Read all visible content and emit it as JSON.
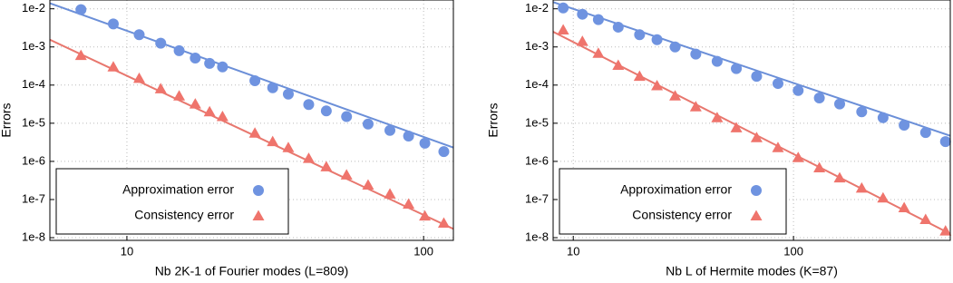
{
  "chart_data": [
    {
      "type": "scatter",
      "xlabel": "Nb 2K-1 of Fourier modes (L=809)",
      "ylabel": "Errors",
      "log_x": true,
      "log_y": true,
      "grid": true,
      "legend": "lower left",
      "xlim": [
        5.5,
        126
      ],
      "ylim": [
        8.5e-09,
        0.017
      ],
      "xticks": [
        10,
        100
      ],
      "yticks": [
        {
          "value": 1e-08,
          "label": "1e-8"
        },
        {
          "value": 1e-07,
          "label": "1e-7"
        },
        {
          "value": 1e-06,
          "label": "1e-6"
        },
        {
          "value": 1e-05,
          "label": "1e-5"
        },
        {
          "value": 0.0001,
          "label": "1e-4"
        },
        {
          "value": 0.001,
          "label": "1e-3"
        },
        {
          "value": 0.01,
          "label": "1e-2"
        }
      ],
      "series": [
        {
          "name": "Approximation error",
          "color": "#6f93e0",
          "marker": "circle",
          "x": [
            7,
            9,
            11,
            13,
            15,
            17,
            19,
            21,
            27,
            31,
            35,
            41,
            47,
            55,
            65,
            77,
            89,
            101,
            117
          ],
          "values": [
            0.0095,
            0.004,
            0.0021,
            0.00125,
            0.0008,
            0.00051,
            0.00037,
            0.0003,
            0.00013,
            8.5e-05,
            5.8e-05,
            3.1e-05,
            2.1e-05,
            1.5e-05,
            9.5e-06,
            6.5e-06,
            4.6e-06,
            3e-06,
            1.8e-06
          ]
        },
        {
          "name": "Consistency error",
          "color": "#ef746c",
          "marker": "triangle",
          "x": [
            7,
            9,
            11,
            13,
            15,
            17,
            19,
            21,
            27,
            31,
            35,
            41,
            47,
            55,
            65,
            77,
            89,
            101,
            117
          ],
          "values": [
            0.0006,
            0.0003,
            0.00015,
            8e-05,
            5.2e-05,
            3.2e-05,
            2e-05,
            1.5e-05,
            5.5e-06,
            3.3e-06,
            2.3e-06,
            1.2e-06,
            7.2e-07,
            4.4e-07,
            2.4e-07,
            1.4e-07,
            7.6e-08,
            3.7e-08,
            2.4e-08
          ]
        }
      ],
      "fits": [
        {
          "color": "#6b8fd8",
          "x": [
            5.5,
            126
          ],
          "values": [
            0.014,
            2.3e-06
          ]
        },
        {
          "color": "#e8776e",
          "x": [
            5.5,
            126
          ],
          "values": [
            0.00155,
            1.7e-08
          ]
        }
      ]
    },
    {
      "type": "scatter",
      "xlabel": "Nb L of Hermite modes (K=87)",
      "ylabel": "Errors",
      "log_x": true,
      "log_y": true,
      "grid": true,
      "legend": "lower left",
      "xlim": [
        8.1,
        515
      ],
      "ylim": [
        8.5e-09,
        0.017
      ],
      "xticks": [
        10,
        100
      ],
      "yticks": [
        {
          "value": 1e-08,
          "label": "1e-8"
        },
        {
          "value": 1e-07,
          "label": "1e-7"
        },
        {
          "value": 1e-06,
          "label": "1e-6"
        },
        {
          "value": 1e-05,
          "label": "1e-5"
        },
        {
          "value": 0.0001,
          "label": "1e-4"
        },
        {
          "value": 0.001,
          "label": "1e-3"
        },
        {
          "value": 0.01,
          "label": "1e-2"
        }
      ],
      "series": [
        {
          "name": "Approximation error",
          "color": "#6f93e0",
          "marker": "circle",
          "x": [
            9,
            11,
            13,
            16,
            20,
            24,
            29,
            36,
            45,
            55,
            68,
            85,
            105,
            131,
            162,
            204,
            255,
            318,
            398,
            490
          ],
          "values": [
            0.0105,
            0.0072,
            0.0052,
            0.0033,
            0.0021,
            0.00155,
            0.001,
            0.00065,
            0.00042,
            0.00027,
            0.00017,
            0.00011,
            7.2e-05,
            4.6e-05,
            3.2e-05,
            2e-05,
            1.4e-05,
            8.9e-06,
            5.7e-06,
            3.3e-06
          ]
        },
        {
          "name": "Consistency error",
          "color": "#ef746c",
          "marker": "triangle",
          "x": [
            9,
            11,
            13,
            16,
            20,
            24,
            29,
            36,
            45,
            55,
            68,
            85,
            105,
            131,
            162,
            204,
            255,
            318,
            398,
            490
          ],
          "values": [
            0.0028,
            0.0014,
            0.00068,
            0.00033,
            0.00017,
            9.6e-05,
            5.2e-05,
            2.7e-05,
            1.4e-05,
            7.6e-06,
            4.2e-06,
            2.3e-06,
            1.26e-06,
            6.8e-07,
            3.7e-07,
            2e-07,
            1.1e-07,
            6.1e-08,
            3e-08,
            1.5e-08
          ]
        }
      ],
      "fits": [
        {
          "color": "#6b8fd8",
          "x": [
            8.1,
            515
          ],
          "values": [
            0.015,
            4.7e-06
          ]
        },
        {
          "color": "#e8776e",
          "x": [
            8.1,
            515
          ],
          "values": [
            0.0025,
            1.26e-08
          ]
        }
      ]
    }
  ]
}
